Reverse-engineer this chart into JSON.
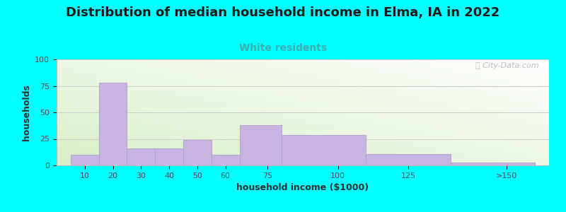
{
  "title": "Distribution of median household income in Elma, IA in 2022",
  "subtitle": "White residents",
  "xlabel": "household income ($1000)",
  "ylabel": "households",
  "background_color": "#00FFFF",
  "bar_color": "#c8b4e0",
  "bar_edge_color": "#b0a0cc",
  "categories": [
    "10",
    "20",
    "30",
    "40",
    "50",
    "60",
    "75",
    "100",
    "125",
    ">150"
  ],
  "values": [
    10,
    78,
    16,
    16,
    24,
    10,
    38,
    29,
    11,
    3
  ],
  "bar_left_edges": [
    5,
    15,
    25,
    35,
    45,
    55,
    65,
    80,
    110,
    140
  ],
  "bar_widths": [
    10,
    10,
    10,
    10,
    10,
    10,
    15,
    30,
    30,
    30
  ],
  "xtick_positions": [
    10,
    20,
    30,
    40,
    50,
    60,
    75,
    100,
    125,
    160
  ],
  "ylim": [
    0,
    100
  ],
  "xlim": [
    0,
    175
  ],
  "yticks": [
    0,
    25,
    50,
    75,
    100
  ],
  "title_fontsize": 13,
  "subtitle_fontsize": 10,
  "subtitle_color": "#3ab0b0",
  "watermark": "ⓘ City-Data.com",
  "gradient_colors": [
    "#d8eec8",
    "#f8fdf8",
    "#ffffff"
  ],
  "grid_color": "#cccccc"
}
